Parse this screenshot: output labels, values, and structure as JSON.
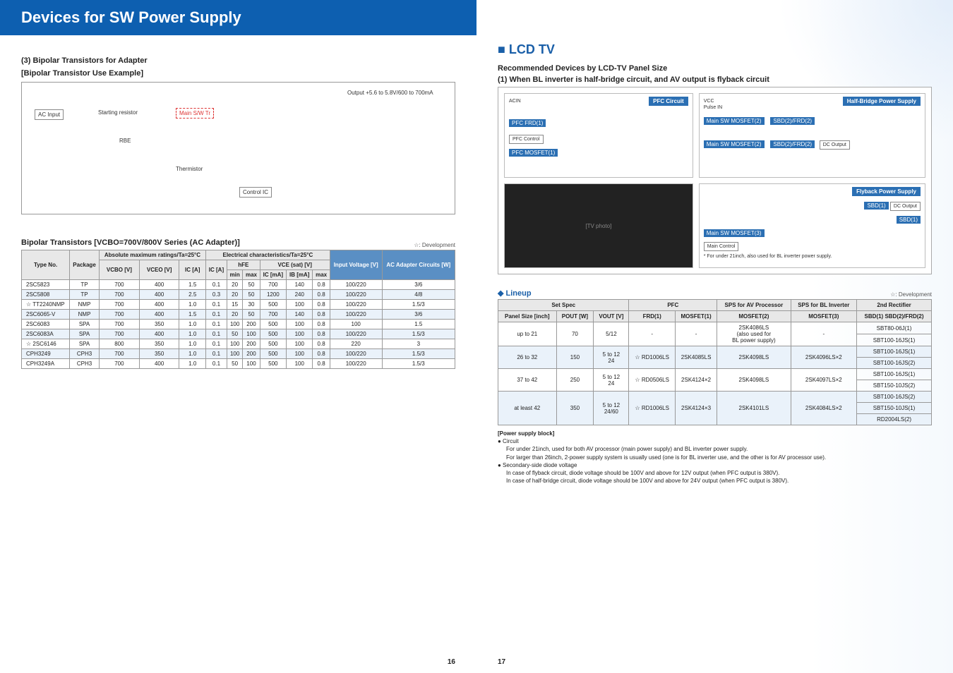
{
  "doc_title": "Devices for SW Power Supply",
  "left": {
    "section3": "(3) Bipolar Transistors for Adapter",
    "example_label": "[Bipolar Transistor Use Example]",
    "diagram": {
      "ac_input": "AC Input",
      "starting_resistor": "Starting resistor",
      "rbe": "RBE",
      "main_sw_tr": "Main S/W Tr",
      "thermistor": "Thermistor",
      "control_ic": "Control IC",
      "output": "Output +5.6 to 5.8V/600 to 700mA"
    },
    "table_title": "Bipolar Transistors [VCBO=700V/800V Series (AC Adapter)]",
    "dev_note": "☆: Development",
    "headers": {
      "type_no": "Type No.",
      "package": "Package",
      "abs_max": "Absolute maximum ratings/Ta=25°C",
      "elec_char": "Electrical characteristics/Ta=25°C",
      "vcbo": "VCBO [V]",
      "vceo": "VCEO [V]",
      "ic_a": "IC [A]",
      "ic_ma": "IC [A]",
      "hfe": "hFE",
      "min": "min",
      "max": "max",
      "vce_sat": "VCE (sat) [V]",
      "ic_ma2": "IC [mA]",
      "ib_ma": "IB [mA]",
      "max2": "max",
      "input_voltage": "Input Voltage [V]",
      "ac_adapter": "AC Adapter Circuits [W]"
    },
    "rows": [
      {
        "alt": false,
        "type": "2SC5823",
        "pkg": "TP",
        "vcbo": "700",
        "vceo": "400",
        "ic": "1.5",
        "ica": "0.1",
        "hmin": "20",
        "hmax": "50",
        "icma": "700",
        "ibma": "140",
        "vmax": "0.8",
        "vin": "100/220",
        "w": "3/6"
      },
      {
        "alt": true,
        "type": "2SC5808",
        "pkg": "TP",
        "vcbo": "700",
        "vceo": "400",
        "ic": "2.5",
        "ica": "0.3",
        "hmin": "20",
        "hmax": "50",
        "icma": "1200",
        "ibma": "240",
        "vmax": "0.8",
        "vin": "100/220",
        "w": "4/8"
      },
      {
        "alt": false,
        "type": "☆ TT2240NMP",
        "pkg": "NMP",
        "vcbo": "700",
        "vceo": "400",
        "ic": "1.0",
        "ica": "0.1",
        "hmin": "15",
        "hmax": "30",
        "icma": "500",
        "ibma": "100",
        "vmax": "0.8",
        "vin": "100/220",
        "w": "1.5/3"
      },
      {
        "alt": true,
        "type": "2SC6065-V",
        "pkg": "NMP",
        "vcbo": "700",
        "vceo": "400",
        "ic": "1.5",
        "ica": "0.1",
        "hmin": "20",
        "hmax": "50",
        "icma": "700",
        "ibma": "140",
        "vmax": "0.8",
        "vin": "100/220",
        "w": "3/6"
      },
      {
        "alt": false,
        "type": "2SC6083",
        "pkg": "SPA",
        "vcbo": "700",
        "vceo": "350",
        "ic": "1.0",
        "ica": "0.1",
        "hmin": "100",
        "hmax": "200",
        "icma": "500",
        "ibma": "100",
        "vmax": "0.8",
        "vin": "100",
        "w": "1.5"
      },
      {
        "alt": true,
        "type": "2SC6083A",
        "pkg": "SPA",
        "vcbo": "700",
        "vceo": "400",
        "ic": "1.0",
        "ica": "0.1",
        "hmin": "50",
        "hmax": "100",
        "icma": "500",
        "ibma": "100",
        "vmax": "0.8",
        "vin": "100/220",
        "w": "1.5/3"
      },
      {
        "alt": false,
        "type": "☆ 2SC6146",
        "pkg": "SPA",
        "vcbo": "800",
        "vceo": "350",
        "ic": "1.0",
        "ica": "0.1",
        "hmin": "100",
        "hmax": "200",
        "icma": "500",
        "ibma": "100",
        "vmax": "0.8",
        "vin": "220",
        "w": "3"
      },
      {
        "alt": true,
        "type": "CPH3249",
        "pkg": "CPH3",
        "vcbo": "700",
        "vceo": "350",
        "ic": "1.0",
        "ica": "0.1",
        "hmin": "100",
        "hmax": "200",
        "icma": "500",
        "ibma": "100",
        "vmax": "0.8",
        "vin": "100/220",
        "w": "1.5/3"
      },
      {
        "alt": false,
        "type": "CPH3249A",
        "pkg": "CPH3",
        "vcbo": "700",
        "vceo": "400",
        "ic": "1.0",
        "ica": "0.1",
        "hmin": "50",
        "hmax": "100",
        "icma": "500",
        "ibma": "100",
        "vmax": "0.8",
        "vin": "100/220",
        "w": "1.5/3"
      }
    ],
    "page_num": "16"
  },
  "right": {
    "section": "■ LCD TV",
    "sub1": "Recommended Devices by LCD-TV Panel Size",
    "sub2": "(1) When BL inverter is half-bridge circuit, and AV output is flyback circuit",
    "panels": {
      "pfc": {
        "title": "PFC Circuit",
        "acin": "ACIN",
        "pfc_frd": "PFC FRD(1)",
        "pfc_control": "PFC Control",
        "pfc_mosfet": "PFC MOSFET(1)"
      },
      "half_bridge": {
        "title": "Half-Bridge Power Supply",
        "vcc": "VCC",
        "pulse_in": "Pulse IN",
        "main_sw": "Main SW MOSFET(2)",
        "sbd": "SBD(2)/FRD(2)",
        "dc_out": "DC Output"
      },
      "flyback": {
        "title": "Flyback Power Supply",
        "main_sw": "Main SW MOSFET(3)",
        "sbd": "SBD(1)",
        "dc_out": "DC Output",
        "main_control": "Main Control",
        "note": "* For under 21inch, also used for BL inverter power supply."
      },
      "photo": "[TV photo]"
    },
    "lineup_label": "◆ Lineup",
    "dev_note": "☆: Development",
    "lineup_headers": {
      "set_spec": "Set Spec",
      "panel_size": "Panel Size [inch]",
      "pout": "POUT [W]",
      "vout": "VOUT [V]",
      "pfc": "PFC",
      "frd1": "FRD(1)",
      "mosfet1": "MOSFET(1)",
      "sps_av": "SPS for AV Processor",
      "mosfet2": "MOSFET(2)",
      "sps_bl": "SPS for BL Inverter",
      "mosfet3": "MOSFET(3)",
      "rect": "2nd Rectifier",
      "sbd": "SBD(1) SBD(2)/FRD(2)"
    },
    "lineup_rows": [
      {
        "alt": false,
        "panel": "up to 21",
        "pout": "70",
        "vout": "5/12",
        "frd": "-",
        "m1": "-",
        "m2_a": "2SK4086LS",
        "m2_b": "(also used for",
        "m2_c": "BL power supply)",
        "m3": "-",
        "r_a": "SBT80-06J(1)",
        "r_b": "SBT100-16JS(1)"
      },
      {
        "alt": true,
        "panel": "26 to 32",
        "pout": "150",
        "vout": "5 to 12\n24",
        "frd": "☆ RD1006LS",
        "m1": "2SK4085LS",
        "m2": "2SK4098LS",
        "m3": "2SK4096LS×2",
        "r_a": "SBT100-16JS(1)",
        "r_b": "SBT100-16JS(2)"
      },
      {
        "alt": false,
        "panel": "37 to 42",
        "pout": "250",
        "vout": "5 to 12\n24",
        "frd": "☆ RD0506LS",
        "m1": "2SK4124×2",
        "m2": "2SK4098LS",
        "m3": "2SK4097LS×2",
        "r_a": "SBT100-16JS(1)",
        "r_b": "SBT150-10JS(2)"
      },
      {
        "alt": true,
        "panel": "at least 42",
        "pout": "350",
        "vout": "5 to 12\n24/60",
        "frd": "☆ RD1006LS",
        "m1": "2SK4124×3",
        "m2": "2SK4101LS",
        "m3": "2SK4084LS×2",
        "r_a": "SBT100-16JS(2)",
        "r_b": "SBT150-10JS(1)",
        "r_c": "RD2004LS(2)"
      }
    ],
    "footnotes": {
      "head": "[Power supply block]",
      "b1": "● Circuit",
      "l1": "For under 21inch, used for both AV processor (main power supply) and BL inverter power supply.",
      "l2": "For larger than 26inch, 2-power supply system is usually used (one is for BL inverter use, and the other is for AV processor use).",
      "b2": "● Secondary-side diode voltage",
      "l3": "In case of flyback circuit, diode voltage should be 100V and above for 12V output (when PFC output is 380V).",
      "l4": "In case of half-bridge circuit, diode voltage should be 100V and above for 24V output (when PFC output is 380V)."
    },
    "page_num": "17"
  }
}
